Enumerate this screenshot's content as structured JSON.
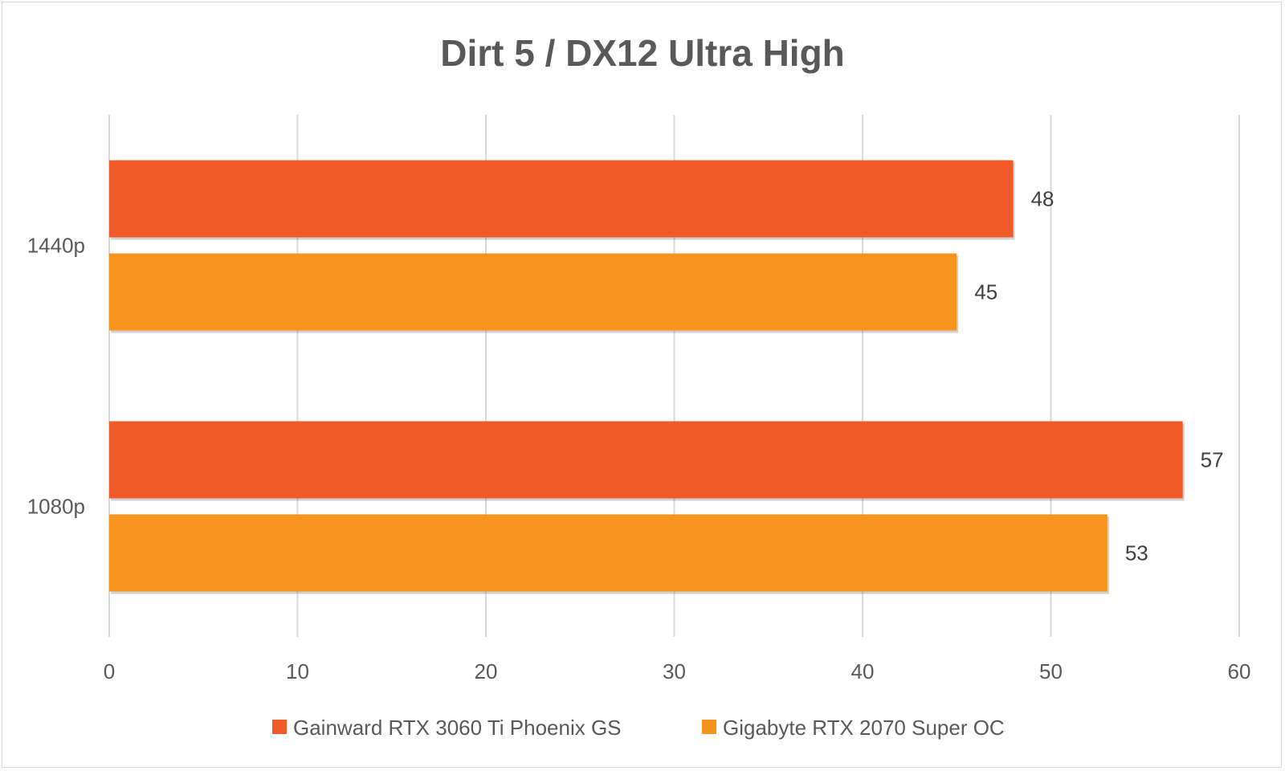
{
  "chart_data": {
    "type": "bar",
    "orientation": "horizontal",
    "title": "Dirt 5 / DX12 Ultra High",
    "categories": [
      "1440p",
      "1080p"
    ],
    "series": [
      {
        "name": "Gainward RTX 3060 Ti Phoenix GS",
        "color": "#f05a28",
        "values": [
          48,
          57
        ]
      },
      {
        "name": "Gigabyte RTX 2070 Super OC",
        "color": "#f7941d",
        "values": [
          45,
          53
        ]
      }
    ],
    "xlim": [
      0,
      60
    ],
    "xticks": [
      "0",
      "10",
      "20",
      "30",
      "40",
      "50",
      "60"
    ],
    "grid": true,
    "legend": "bottom",
    "data_labels": true
  }
}
